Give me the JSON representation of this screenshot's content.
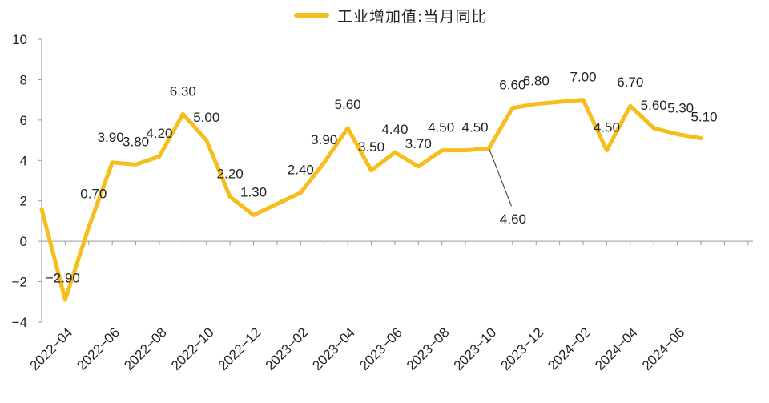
{
  "chart_data": {
    "type": "line",
    "title": "",
    "xlabel": "",
    "ylabel": "",
    "ylim": [
      -4,
      10
    ],
    "yticks": [
      -4,
      -2,
      0,
      2,
      4,
      6,
      8,
      10
    ],
    "ytick_labels": [
      "−4",
      "−2",
      "0",
      "2",
      "4",
      "6",
      "8",
      "10"
    ],
    "legend_position": "top-center",
    "grid": false,
    "series": [
      {
        "name": "工业增加值:当月同比",
        "color": "#F5BE1C",
        "points": [
          {
            "x": "2022-03",
            "y": 1.6
          },
          {
            "x": "2022-04",
            "y": -2.9,
            "label": "−2.90"
          },
          {
            "x": "2022-05",
            "y": 0.7,
            "label": "0.70"
          },
          {
            "x": "2022-06",
            "y": 3.9,
            "label": "3.90"
          },
          {
            "x": "2022-07",
            "y": 3.8,
            "label": "3.80"
          },
          {
            "x": "2022-08",
            "y": 4.2,
            "label": "4.20"
          },
          {
            "x": "2022-09",
            "y": 6.3,
            "label": "6.30"
          },
          {
            "x": "2022-10",
            "y": 5.0,
            "label": "5.00"
          },
          {
            "x": "2022-11",
            "y": 2.2,
            "label": "2.20"
          },
          {
            "x": "2022-12",
            "y": 1.3,
            "label": "1.30"
          },
          {
            "x": "2023-01",
            "y": 1.85
          },
          {
            "x": "2023-02",
            "y": 2.4,
            "label": "2.40"
          },
          {
            "x": "2023-03",
            "y": 3.9,
            "label": "3.90"
          },
          {
            "x": "2023-04",
            "y": 5.6,
            "label": "5.60"
          },
          {
            "x": "2023-05",
            "y": 3.5,
            "label": "3.50"
          },
          {
            "x": "2023-06",
            "y": 4.4,
            "label": "4.40"
          },
          {
            "x": "2023-07",
            "y": 3.7,
            "label": "3.70"
          },
          {
            "x": "2023-08",
            "y": 4.5,
            "label": "4.50"
          },
          {
            "x": "2023-09",
            "y": 4.5,
            "label": "4.50"
          },
          {
            "x": "2023-10",
            "y": 4.6,
            "label": "4.60"
          },
          {
            "x": "2023-11",
            "y": 6.6,
            "label": "6.60"
          },
          {
            "x": "2023-12",
            "y": 6.8,
            "label": "6.80"
          },
          {
            "x": "2024-01",
            "y": 6.9
          },
          {
            "x": "2024-02",
            "y": 7.0,
            "label": "7.00"
          },
          {
            "x": "2024-03",
            "y": 4.5,
            "label": "4.50"
          },
          {
            "x": "2024-04",
            "y": 6.7,
            "label": "6.70"
          },
          {
            "x": "2024-05",
            "y": 5.6,
            "label": "5.60"
          },
          {
            "x": "2024-06",
            "y": 5.3,
            "label": "5.30"
          },
          {
            "x": "2024-07",
            "y": 5.1,
            "label": "5.10"
          }
        ]
      }
    ],
    "x_tick_labels": [
      "2022−04",
      "2022−06",
      "2022−08",
      "2022−10",
      "2022−12",
      "2023−02",
      "2023−04",
      "2023−06",
      "2023−08",
      "2023−10",
      "2023−12",
      "2024−02",
      "2024−04",
      "2024−06"
    ],
    "x_tick_months": [
      "2022-04",
      "2022-06",
      "2022-08",
      "2022-10",
      "2022-12",
      "2023-02",
      "2023-04",
      "2023-06",
      "2023-08",
      "2023-10",
      "2023-12",
      "2024-02",
      "2024-04",
      "2024-06"
    ]
  }
}
